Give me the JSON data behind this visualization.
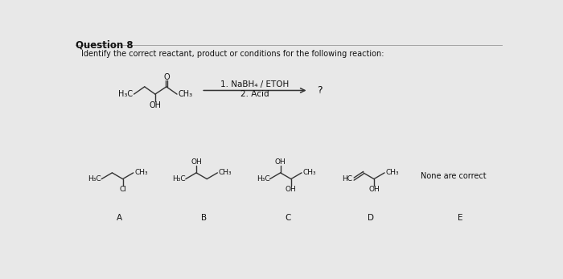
{
  "title": "Question 8",
  "subtitle": "Identify the correct reactant, product or conditions for the following reaction:",
  "bg_color": "#e8e8e8",
  "condition1": "1. NaBH₄ / ETOH",
  "condition2": "2. Acid",
  "answer_e_text": "None are correct",
  "labels": [
    "A",
    "B",
    "C",
    "D",
    "E"
  ]
}
